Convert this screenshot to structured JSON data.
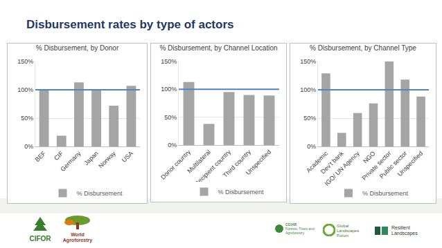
{
  "title": "Disbursement rates by type of actors",
  "chart_data": [
    {
      "type": "bar",
      "title": "% Disbursement, by Donor",
      "categories": [
        "BEF",
        "CIF",
        "Germany",
        "Japan",
        "Norway",
        "USA"
      ],
      "series": [
        {
          "name": "% Disbursement",
          "color": "#a5a5a5",
          "values": [
            100,
            19,
            113,
            101,
            72,
            107
          ]
        }
      ],
      "ylim": [
        0,
        150
      ],
      "yticks": [
        {
          "value": 0,
          "label": "0%"
        },
        {
          "value": 50,
          "label": "50%"
        },
        {
          "value": 100,
          "label": "100%"
        },
        {
          "value": 150,
          "label": "150%"
        }
      ],
      "grid": true,
      "legend": "bottom",
      "reference_line": {
        "value": 100,
        "color": "#4a86c8"
      }
    },
    {
      "type": "bar",
      "title": "% Disbursement, by Channel Location",
      "categories": [
        "Donor country",
        "Multilateral",
        "Recipient country",
        "Third country",
        "Unspecified"
      ],
      "series": [
        {
          "name": "% Disbursement",
          "color": "#a5a5a5",
          "values": [
            113,
            38,
            95,
            90,
            89
          ]
        }
      ],
      "ylim": [
        0,
        150
      ],
      "yticks": [
        {
          "value": 0,
          "label": "0%"
        },
        {
          "value": 50,
          "label": "50%"
        },
        {
          "value": 100,
          "label": "100%"
        },
        {
          "value": 150,
          "label": "150%"
        }
      ],
      "grid": true,
      "legend": "bottom",
      "reference_line": {
        "value": 100,
        "color": "#4a86c8"
      }
    },
    {
      "type": "bar",
      "title": "% Disbursement, by Channel Type",
      "categories": [
        "Academic",
        "Dev't bank",
        "IGO/ UN Agency",
        "NGO",
        "Private sector",
        "Public sector",
        "Unspecified"
      ],
      "series": [
        {
          "name": "% Disbursement",
          "color": "#a5a5a5",
          "values": [
            129,
            24,
            59,
            76,
            150,
            118,
            88
          ]
        }
      ],
      "ylim": [
        0,
        150
      ],
      "yticks": [
        {
          "value": 0,
          "label": "0%"
        },
        {
          "value": 50,
          "label": "50%"
        },
        {
          "value": 100,
          "label": "100%"
        },
        {
          "value": 150,
          "label": "150%"
        }
      ],
      "grid": true,
      "legend": "bottom",
      "reference_line": {
        "value": 100,
        "color": "#4a86c8"
      }
    }
  ],
  "footer": {
    "logos": [
      "CIFOR",
      "World Agroforestry",
      "CGIAR",
      "Forests, Trees and Agroforestry",
      "Global Landscapes Forum",
      "Resilient Landscapes"
    ]
  }
}
